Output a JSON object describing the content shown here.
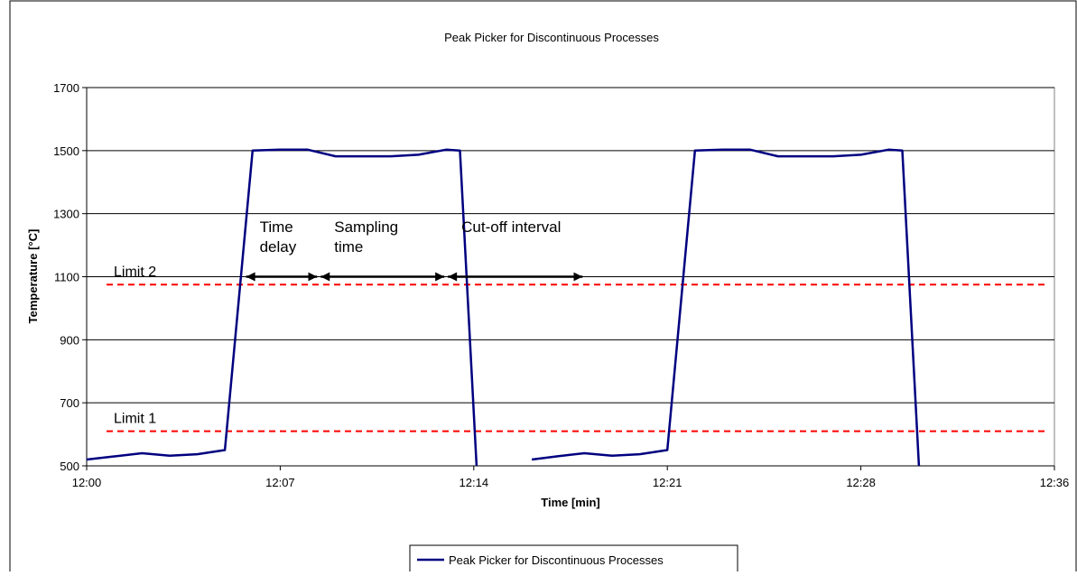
{
  "chart_data": {
    "type": "line",
    "title": "Peak Picker for Discontinuous Processes",
    "xlabel": "Time [min]",
    "ylabel": "Temperature [°C]",
    "x_tick_labels": [
      "12:00",
      "12:07",
      "12:14",
      "12:21",
      "12:28",
      "12:36"
    ],
    "x_tick_minutes": [
      0,
      7,
      14,
      21,
      28,
      35
    ],
    "xlim_minutes": [
      0,
      35
    ],
    "y_tick_labels": [
      "500",
      "700",
      "900",
      "1100",
      "1300",
      "1500",
      "1700"
    ],
    "y_ticks": [
      500,
      700,
      900,
      1100,
      1300,
      1500,
      1700
    ],
    "ylim": [
      500,
      1700
    ],
    "grid": "horizontal",
    "legend_position": "bottom",
    "series": [
      {
        "name": "Peak Picker for Discontinuous Processes",
        "color": "#000080",
        "segments": [
          [
            [
              0,
              520
            ],
            [
              1,
              530
            ],
            [
              2,
              540
            ],
            [
              3,
              532
            ],
            [
              4,
              537
            ],
            [
              5,
              550
            ],
            [
              6,
              1500
            ],
            [
              7,
              1503
            ],
            [
              8,
              1503
            ],
            [
              9,
              1482
            ],
            [
              10,
              1482
            ],
            [
              11,
              1482
            ],
            [
              12,
              1487
            ],
            [
              13,
              1503
            ],
            [
              13.5,
              1500
            ],
            [
              14.1,
              500
            ]
          ],
          [
            [
              16.1,
              520
            ],
            [
              17,
              530
            ],
            [
              18,
              540
            ],
            [
              19,
              532
            ],
            [
              20,
              537
            ],
            [
              21,
              550
            ],
            [
              22,
              1500
            ],
            [
              23,
              1503
            ],
            [
              24,
              1503
            ],
            [
              25,
              1482
            ],
            [
              26,
              1482
            ],
            [
              27,
              1482
            ],
            [
              28,
              1487
            ],
            [
              29,
              1503
            ],
            [
              29.5,
              1500
            ],
            [
              30.1,
              500
            ]
          ]
        ]
      }
    ],
    "reference_lines": [
      {
        "label": "Limit 1",
        "y": 610,
        "color": "#ff0000"
      },
      {
        "label": "Limit 2",
        "y": 1075,
        "color": "#ff0000"
      }
    ],
    "annotations": [
      {
        "lines": [
          "Time",
          "delay"
        ],
        "x_start": 5.7,
        "x_end": 8.4,
        "y": 1100
      },
      {
        "lines": [
          "Sampling",
          "time"
        ],
        "x_start": 8.4,
        "x_end": 13.0,
        "y": 1100
      },
      {
        "lines": [
          "Cut-off interval"
        ],
        "x_start": 13.0,
        "x_end": 18.0,
        "y": 1100
      }
    ]
  }
}
